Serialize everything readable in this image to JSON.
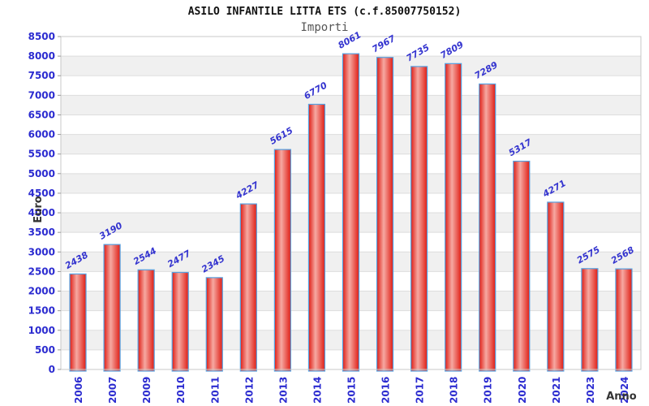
{
  "chart_data": {
    "type": "bar",
    "title": "ASILO INFANTILE LITTA ETS (c.f.85007750152)",
    "subtitle": "Importi",
    "xlabel": "Anno",
    "ylabel": "Euro",
    "categories": [
      "2006",
      "2007",
      "2009",
      "2010",
      "2011",
      "2012",
      "2013",
      "2014",
      "2015",
      "2016",
      "2017",
      "2018",
      "2019",
      "2020",
      "2021",
      "2023",
      "2024"
    ],
    "values": [
      2438,
      3190,
      2544,
      2477,
      2345,
      4227,
      5615,
      6770,
      8061,
      7967,
      7735,
      7809,
      7289,
      5317,
      4271,
      2575,
      2568
    ],
    "ylim": [
      0,
      8500
    ],
    "ytick_step": 500,
    "grid": "horizontal-bands-alternating",
    "legend_position": "none"
  },
  "colors": {
    "label_blue": "#2b2bd0",
    "value_label_blue": "#3434cf",
    "bar_edge": "#df1d14",
    "bar_mid": "#f6a9a2",
    "bar_border": "#55a0e0",
    "band_gray": "#f0f0f0",
    "gridline": "#dddddd",
    "plot_border": "#c8c8c8",
    "tick_mark": "#999999",
    "title_color": "#111111",
    "subtitle_color": "#555555",
    "axis_title_color": "#333333",
    "background": "#ffffff"
  }
}
